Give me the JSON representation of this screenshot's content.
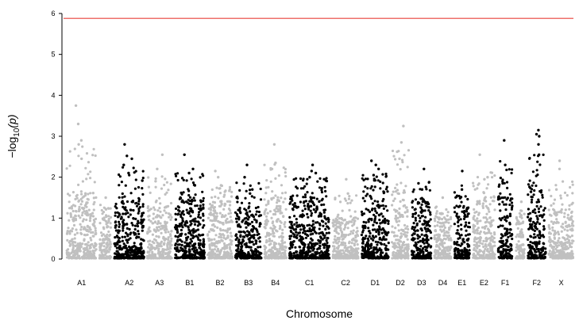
{
  "chart_data": {
    "type": "scatter",
    "subtype": "manhattan",
    "title": "",
    "xlabel": "Chromosome",
    "ylabel_parts": {
      "prefix": "−log",
      "sub": "10",
      "suffix": "(p)"
    },
    "ylim": [
      0,
      6
    ],
    "yticks": [
      0,
      1,
      2,
      3,
      4,
      5,
      6
    ],
    "threshold": 5.88,
    "colors": {
      "odd": "#000000",
      "even": "#c0c0c0",
      "threshold": "#e8403a"
    },
    "chromosomes": [
      {
        "label": "A1",
        "span": 1.15,
        "max": 3.75,
        "dense_top": 1.6,
        "color": "even",
        "peaks": [
          3.75,
          3.3,
          2.9,
          2.8,
          2.45
        ]
      },
      {
        "label": "",
        "span": 0.45,
        "max": 1.5,
        "dense_top": 1.1,
        "color": "even",
        "peaks": [
          1.5
        ]
      },
      {
        "label": "A2",
        "span": 1.15,
        "max": 2.8,
        "dense_top": 1.5,
        "color": "odd",
        "peaks": [
          2.8,
          2.52,
          2.45,
          2.3,
          2.1
        ]
      },
      {
        "label": "A3",
        "span": 0.95,
        "max": 2.55,
        "dense_top": 1.3,
        "color": "even",
        "peaks": [
          2.55,
          2.2,
          1.9
        ]
      },
      {
        "label": "B1",
        "span": 1.15,
        "max": 2.55,
        "dense_top": 1.5,
        "color": "odd",
        "peaks": [
          2.55,
          2.2,
          2.1,
          1.8
        ]
      },
      {
        "label": "B2",
        "span": 0.95,
        "max": 2.15,
        "dense_top": 1.4,
        "color": "even",
        "peaks": [
          2.15,
          2.0,
          1.8
        ]
      },
      {
        "label": "B3",
        "span": 1.0,
        "max": 2.3,
        "dense_top": 1.25,
        "color": "odd",
        "peaks": [
          2.3,
          2.0,
          1.7,
          1.6
        ]
      },
      {
        "label": "B4",
        "span": 0.85,
        "max": 2.8,
        "dense_top": 1.6,
        "color": "even",
        "peaks": [
          2.8,
          2.35,
          2.2
        ]
      },
      {
        "label": "C1",
        "span": 1.55,
        "max": 2.3,
        "dense_top": 1.5,
        "color": "odd",
        "peaks": [
          2.3,
          2.15,
          2.1,
          2.0
        ]
      },
      {
        "label": "C2",
        "span": 1.0,
        "max": 1.95,
        "dense_top": 1.0,
        "color": "even",
        "peaks": [
          1.95,
          1.6
        ]
      },
      {
        "label": "D1",
        "span": 1.05,
        "max": 2.4,
        "dense_top": 1.75,
        "color": "odd",
        "peaks": [
          2.4,
          2.3,
          2.2,
          2.05
        ]
      },
      {
        "label": "D2",
        "span": 0.65,
        "max": 3.25,
        "dense_top": 1.8,
        "color": "even",
        "peaks": [
          3.25,
          2.85,
          2.45
        ]
      },
      {
        "label": "D3",
        "span": 0.75,
        "max": 2.2,
        "dense_top": 1.4,
        "color": "odd",
        "peaks": [
          2.2,
          1.85,
          1.7
        ]
      },
      {
        "label": "D4",
        "span": 0.65,
        "max": 1.5,
        "dense_top": 1.0,
        "color": "even",
        "peaks": [
          1.5
        ]
      },
      {
        "label": "E1",
        "span": 0.6,
        "max": 2.15,
        "dense_top": 1.3,
        "color": "odd",
        "peaks": [
          2.15,
          1.7
        ]
      },
      {
        "label": "E2",
        "span": 0.85,
        "max": 2.55,
        "dense_top": 1.5,
        "color": "even",
        "peaks": [
          2.55,
          2.0,
          1.95
        ]
      },
      {
        "label": "F1",
        "span": 0.55,
        "max": 2.9,
        "dense_top": 1.8,
        "color": "odd",
        "peaks": [
          2.9,
          2.3,
          1.85
        ]
      },
      {
        "label": "",
        "span": 0.35,
        "max": 1.4,
        "dense_top": 1.0,
        "color": "even",
        "peaks": [
          1.4
        ]
      },
      {
        "label": "F2",
        "span": 0.7,
        "max": 3.15,
        "dense_top": 1.8,
        "color": "odd",
        "peaks": [
          3.15,
          3.05,
          3.0,
          2.8,
          2.55
        ]
      },
      {
        "label": "X",
        "span": 0.95,
        "max": 2.4,
        "dense_top": 1.2,
        "color": "even",
        "peaks": [
          2.4,
          2.2,
          1.7
        ]
      }
    ]
  }
}
